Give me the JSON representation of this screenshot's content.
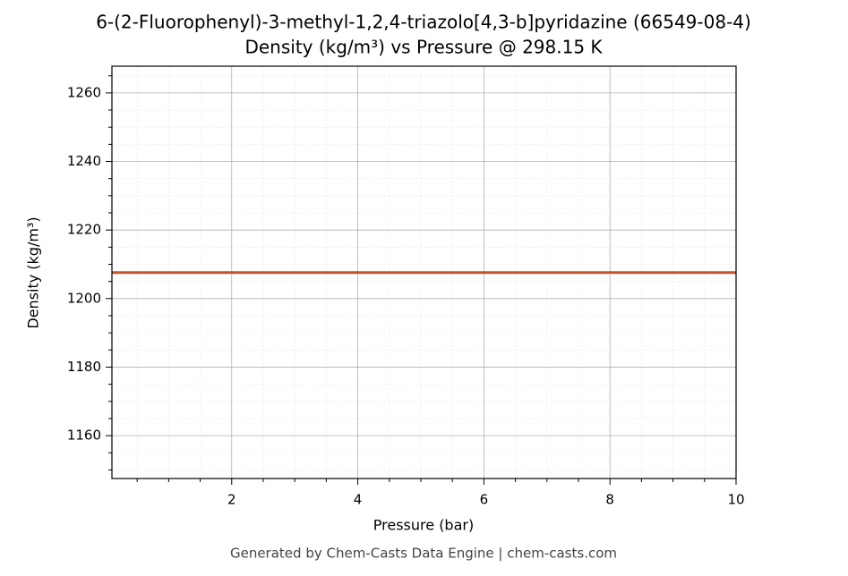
{
  "chart_data": {
    "type": "line",
    "title": "6-(2-Fluorophenyl)-3-methyl-1,2,4-triazolo[4,3-b]pyridazine (66549-08-4)",
    "subtitle": "Density (kg/m³) vs Pressure @ 298.15 K",
    "x_label": "Pressure (bar)",
    "y_label": "Density (kg/m³)",
    "x": [
      0.1,
      10
    ],
    "series": [
      {
        "name": "Density",
        "color": "#c4522b",
        "values": [
          1207.6,
          1207.6
        ]
      }
    ],
    "xlim": [
      0.1,
      10
    ],
    "ylim": [
      1147.5,
      1267.8
    ],
    "xticks": [
      2,
      4,
      6,
      8,
      10
    ],
    "yticks": [
      1160,
      1180,
      1200,
      1220,
      1240,
      1260
    ],
    "xminor": [
      0.5,
      1,
      1.5,
      2.5,
      3,
      3.5,
      4.5,
      5,
      5.5,
      6.5,
      7,
      7.5,
      8.5,
      9,
      9.5
    ],
    "yminor": [
      1150,
      1155,
      1165,
      1170,
      1175,
      1185,
      1190,
      1195,
      1205,
      1210,
      1215,
      1225,
      1230,
      1235,
      1245,
      1250,
      1255,
      1265
    ],
    "grid": true,
    "footer": "Generated by Chem-Casts Data Engine | chem-casts.com"
  }
}
